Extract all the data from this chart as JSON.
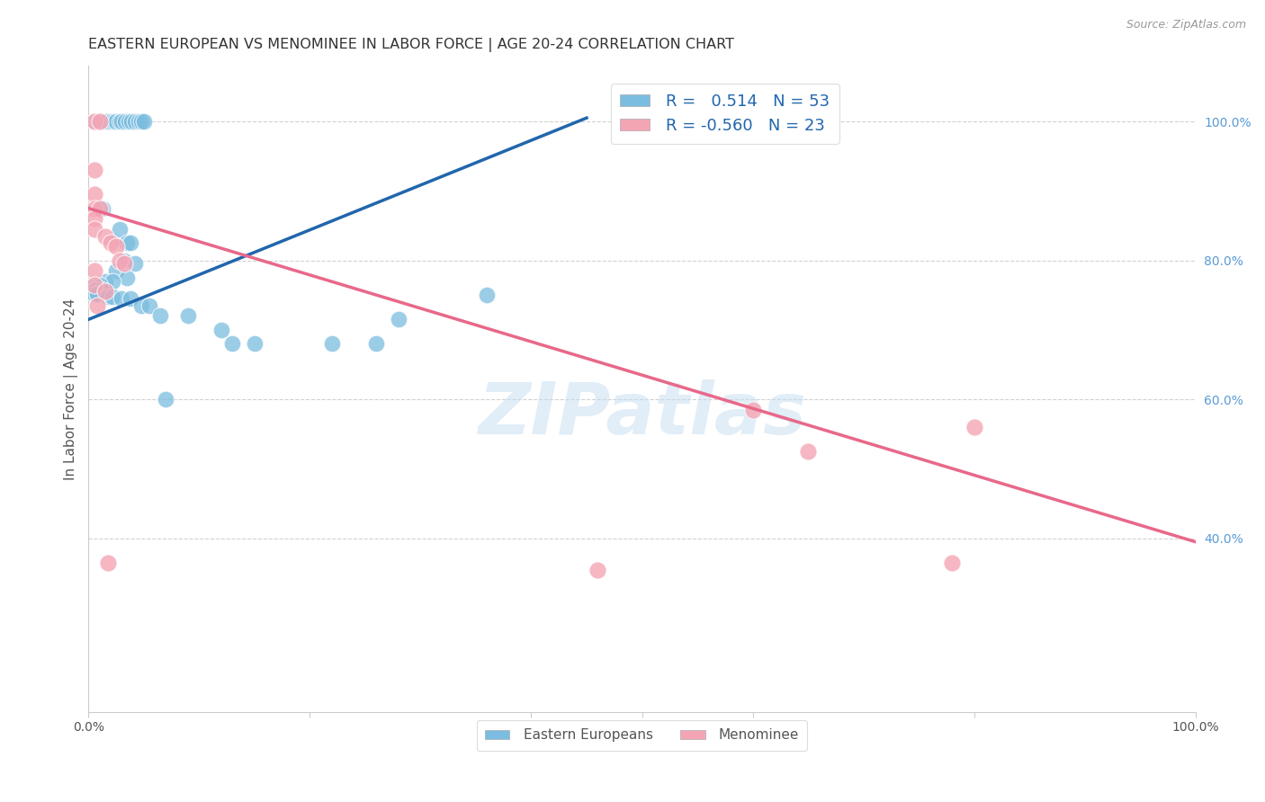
{
  "title": "EASTERN EUROPEAN VS MENOMINEE IN LABOR FORCE | AGE 20-24 CORRELATION CHART",
  "source": "Source: ZipAtlas.com",
  "ylabel": "In Labor Force | Age 20-24",
  "x_min": 0.0,
  "x_max": 1.0,
  "y_min": 0.15,
  "y_max": 1.08,
  "x_ticks": [
    0.0,
    0.2,
    0.4,
    0.6,
    0.8,
    1.0
  ],
  "x_tick_labels": [
    "0.0%",
    "",
    "",
    "",
    "",
    "100.0%"
  ],
  "y_tick_labels_right": [
    "100.0%",
    "80.0%",
    "60.0%",
    "40.0%"
  ],
  "y_tick_positions_right": [
    1.0,
    0.8,
    0.6,
    0.4
  ],
  "blue_R": "0.514",
  "blue_N": "53",
  "pink_R": "-0.560",
  "pink_N": "23",
  "blue_color": "#7bbde0",
  "pink_color": "#f4a5b5",
  "blue_line_color": "#2166ac",
  "pink_line_color": "#e8688a",
  "watermark_text": "ZIPatlas",
  "blue_points": [
    [
      0.005,
      1.0
    ],
    [
      0.007,
      1.0
    ],
    [
      0.009,
      1.0
    ],
    [
      0.011,
      1.0
    ],
    [
      0.014,
      1.0
    ],
    [
      0.016,
      1.0
    ],
    [
      0.018,
      1.0
    ],
    [
      0.021,
      1.0
    ],
    [
      0.023,
      1.0
    ],
    [
      0.025,
      1.0
    ],
    [
      0.028,
      1.0
    ],
    [
      0.03,
      1.0
    ],
    [
      0.033,
      1.0
    ],
    [
      0.036,
      1.0
    ],
    [
      0.039,
      1.0
    ],
    [
      0.042,
      1.0
    ],
    [
      0.045,
      1.0
    ],
    [
      0.048,
      1.0
    ],
    [
      0.05,
      1.0
    ],
    [
      0.013,
      0.875
    ],
    [
      0.028,
      0.845
    ],
    [
      0.035,
      0.825
    ],
    [
      0.038,
      0.825
    ],
    [
      0.032,
      0.8
    ],
    [
      0.042,
      0.795
    ],
    [
      0.025,
      0.785
    ],
    [
      0.035,
      0.775
    ],
    [
      0.015,
      0.77
    ],
    [
      0.022,
      0.77
    ],
    [
      0.005,
      0.765
    ],
    [
      0.008,
      0.765
    ],
    [
      0.01,
      0.765
    ],
    [
      0.005,
      0.758
    ],
    [
      0.007,
      0.758
    ],
    [
      0.012,
      0.758
    ],
    [
      0.005,
      0.752
    ],
    [
      0.008,
      0.752
    ],
    [
      0.018,
      0.748
    ],
    [
      0.022,
      0.748
    ],
    [
      0.03,
      0.745
    ],
    [
      0.038,
      0.745
    ],
    [
      0.048,
      0.735
    ],
    [
      0.055,
      0.735
    ],
    [
      0.065,
      0.72
    ],
    [
      0.09,
      0.72
    ],
    [
      0.12,
      0.7
    ],
    [
      0.13,
      0.68
    ],
    [
      0.15,
      0.68
    ],
    [
      0.22,
      0.68
    ],
    [
      0.26,
      0.68
    ],
    [
      0.07,
      0.6
    ],
    [
      0.28,
      0.715
    ],
    [
      0.36,
      0.75
    ]
  ],
  "pink_points": [
    [
      0.005,
      1.0
    ],
    [
      0.01,
      1.0
    ],
    [
      0.005,
      0.93
    ],
    [
      0.005,
      0.895
    ],
    [
      0.005,
      0.875
    ],
    [
      0.01,
      0.875
    ],
    [
      0.005,
      0.86
    ],
    [
      0.005,
      0.845
    ],
    [
      0.015,
      0.835
    ],
    [
      0.02,
      0.825
    ],
    [
      0.025,
      0.82
    ],
    [
      0.028,
      0.8
    ],
    [
      0.032,
      0.795
    ],
    [
      0.005,
      0.785
    ],
    [
      0.005,
      0.765
    ],
    [
      0.015,
      0.755
    ],
    [
      0.008,
      0.735
    ],
    [
      0.018,
      0.365
    ],
    [
      0.6,
      0.585
    ],
    [
      0.65,
      0.525
    ],
    [
      0.8,
      0.56
    ],
    [
      0.46,
      0.355
    ],
    [
      0.78,
      0.365
    ]
  ],
  "blue_trendline_x": [
    0.0,
    0.45
  ],
  "blue_trendline_y": [
    0.715,
    1.005
  ],
  "pink_trendline_x": [
    0.0,
    1.0
  ],
  "pink_trendline_y": [
    0.875,
    0.395
  ]
}
